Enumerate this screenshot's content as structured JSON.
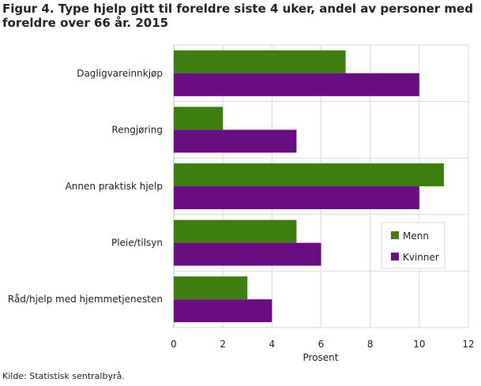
{
  "title": "Figur 4. Type hjelp gitt til foreldre siste 4 uker, andel av personer med foreldre over 66 år. 2015",
  "source": "Kilde: Statistisk sentralbyrå.",
  "chart_data": {
    "type": "bar",
    "orientation": "horizontal",
    "categories": [
      "Dagligvareinnkjøp",
      "Rengjøring",
      "Annen praktisk hjelp",
      "Pleie/tilsyn",
      "Råd/hjelp med hjemmetjenesten"
    ],
    "series": [
      {
        "name": "Menn",
        "values": [
          7,
          2,
          11,
          5,
          3
        ],
        "color": "#3d7f0e"
      },
      {
        "name": "Kvinner",
        "values": [
          10,
          5,
          10,
          6,
          4
        ],
        "color": "#6a0d83"
      }
    ],
    "xlabel": "Prosent",
    "ylabel": "",
    "xlim": [
      0,
      12
    ],
    "xticks": [
      0,
      2,
      4,
      6,
      8,
      10,
      12
    ],
    "grid": true,
    "legend_position": "right"
  }
}
